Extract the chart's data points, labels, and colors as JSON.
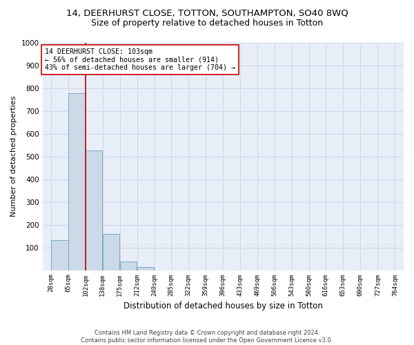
{
  "title": "14, DEERHURST CLOSE, TOTTON, SOUTHAMPTON, SO40 8WQ",
  "subtitle": "Size of property relative to detached houses in Totton",
  "xlabel": "Distribution of detached houses by size in Totton",
  "ylabel": "Number of detached properties",
  "bar_color": "#ccd9e8",
  "bar_edge_color": "#7aaac8",
  "vline_x": 102,
  "vline_color": "#cc0000",
  "bin_edges": [
    28,
    65,
    102,
    138,
    175,
    212,
    249,
    285,
    322,
    359,
    396,
    433,
    469,
    506,
    543,
    580,
    616,
    653,
    690,
    727,
    764
  ],
  "bin_labels": [
    "28sqm",
    "65sqm",
    "102sqm",
    "138sqm",
    "175sqm",
    "212sqm",
    "249sqm",
    "285sqm",
    "322sqm",
    "359sqm",
    "396sqm",
    "433sqm",
    "469sqm",
    "506sqm",
    "543sqm",
    "580sqm",
    "616sqm",
    "653sqm",
    "690sqm",
    "727sqm",
    "764sqm"
  ],
  "values": [
    133,
    778,
    525,
    158,
    37,
    13,
    0,
    0,
    0,
    0,
    0,
    0,
    0,
    0,
    0,
    0,
    0,
    0,
    0,
    0
  ],
  "ylim": [
    0,
    1000
  ],
  "yticks": [
    0,
    100,
    200,
    300,
    400,
    500,
    600,
    700,
    800,
    900,
    1000
  ],
  "bg_color": "#e8eef8",
  "annotation_text": "14 DEERHURST CLOSE: 103sqm\n← 56% of detached houses are smaller (914)\n43% of semi-detached houses are larger (704) →",
  "footer": "Contains HM Land Registry data © Crown copyright and database right 2024.\nContains public sector information licensed under the Open Government Licence v3.0.",
  "title_fontsize": 9.5,
  "subtitle_fontsize": 9,
  "annotation_edge_color": "#cc0000",
  "grid_color": "#d0d8e8"
}
